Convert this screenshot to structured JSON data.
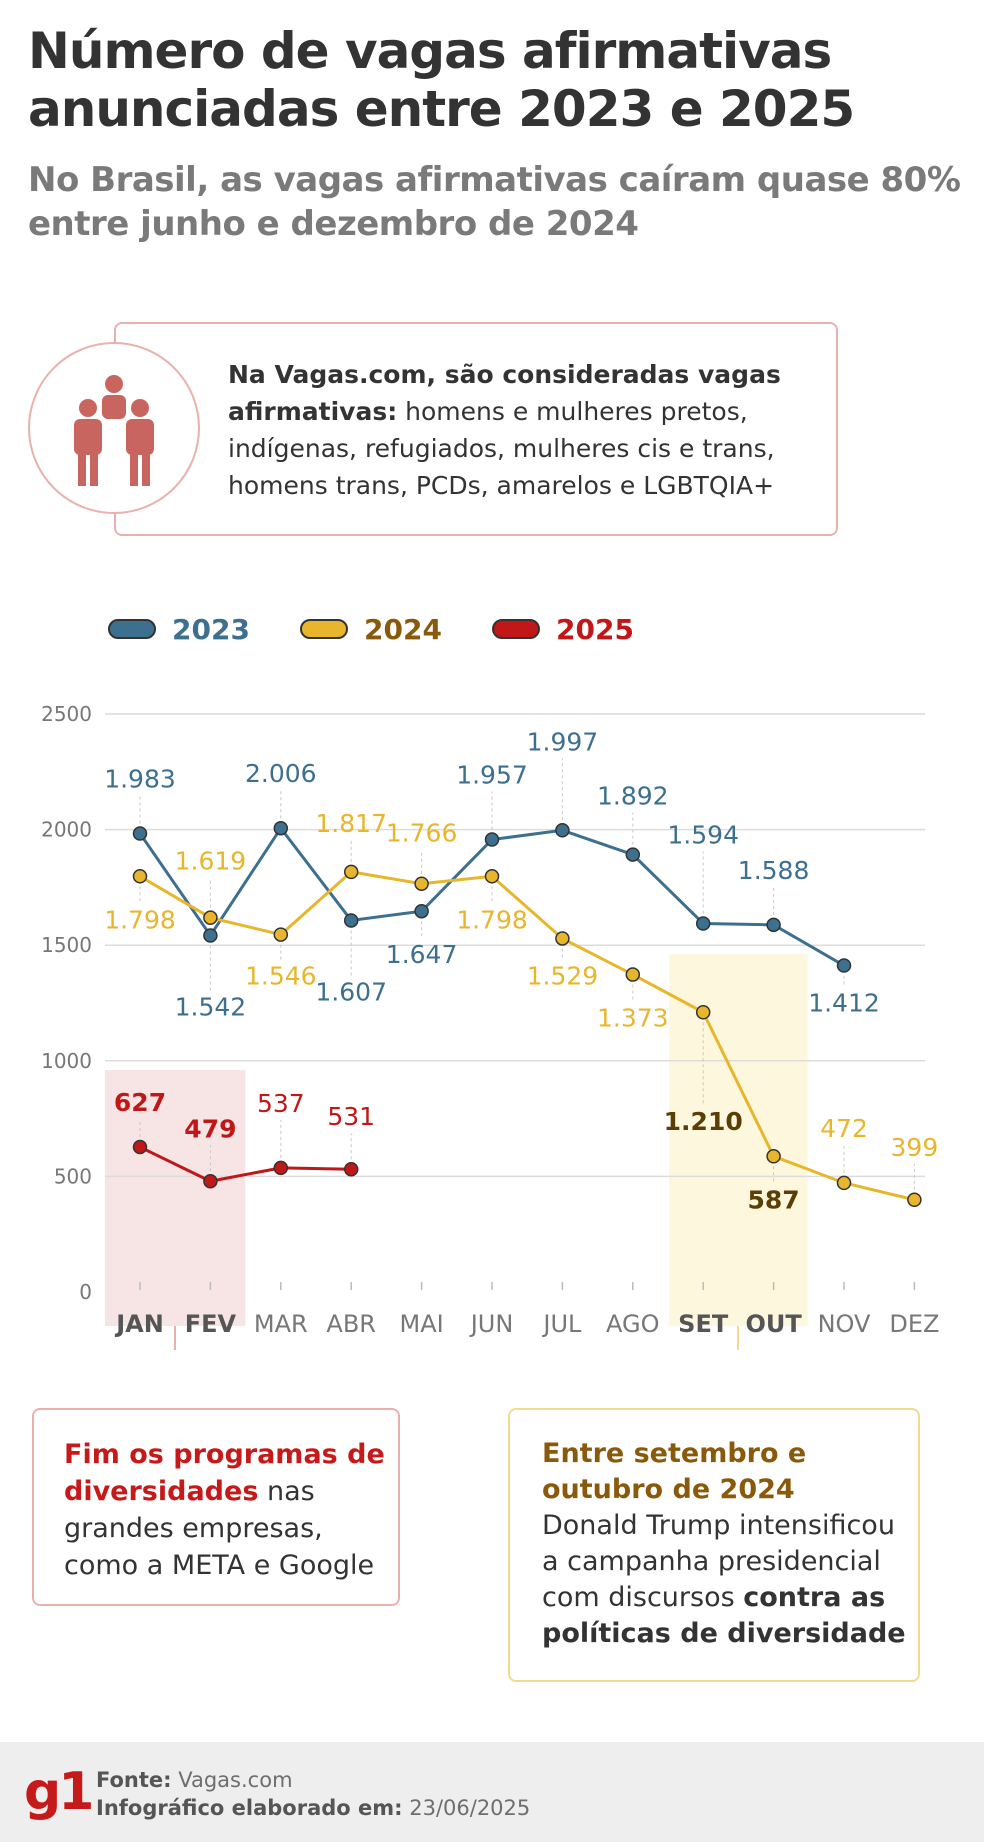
{
  "title": "Número de vagas afirmativas anunciadas entre 2023 e 2025",
  "subtitle": "No Brasil, as vagas afirmativas caíram quase 80% entre junho e dezembro de 2024",
  "info": {
    "bold": "Na Vagas.com, são consideradas vagas afirmativas:",
    "text": " homens e mulheres pretos, indígenas, refugiados, mulheres cis e trans, homens trans, PCDs, amarelos e LGBTQIA+",
    "icon": "people-group-icon"
  },
  "colors": {
    "s2023": "#3d6f8f",
    "s2024": "#e8b62c",
    "s2025": "#c01818",
    "highlight_left": "#f7e5e5",
    "highlight_right": "#fdf7dd"
  },
  "chart_data": {
    "type": "line",
    "categories": [
      "JAN",
      "FEV",
      "MAR",
      "ABR",
      "MAI",
      "JUN",
      "JUL",
      "AGO",
      "SET",
      "OUT",
      "NOV",
      "DEZ"
    ],
    "ylim": [
      0,
      2500
    ],
    "yticks": [
      "0",
      "500",
      "1000",
      "1500",
      "2000",
      "2500"
    ],
    "grid": true,
    "legend_position": "top-left",
    "highlighted_categories": [
      "JAN",
      "FEV",
      "SET",
      "OUT"
    ],
    "series": [
      {
        "name": "2023",
        "values": [
          1983,
          1542,
          2006,
          1607,
          1647,
          1957,
          1997,
          1892,
          1594,
          1588,
          1412,
          null
        ],
        "labels": [
          "1.983",
          "1.542",
          "2.006",
          "1.607",
          "1.647",
          "1.957",
          "1.997",
          "1.892",
          "1.594",
          "1.588",
          "1.412",
          ""
        ]
      },
      {
        "name": "2024",
        "values": [
          1798,
          1619,
          1546,
          1817,
          1766,
          1798,
          1529,
          1373,
          1210,
          587,
          472,
          399
        ],
        "labels": [
          "1.798",
          "1.619",
          "1.546",
          "1.817",
          "1.766",
          "1.798",
          "1.529",
          "1.373",
          "1.210",
          "587",
          "472",
          "399"
        ]
      },
      {
        "name": "2025",
        "values": [
          627,
          479,
          537,
          531,
          null,
          null,
          null,
          null,
          null,
          null,
          null,
          null
        ],
        "labels": [
          "627",
          "479",
          "537",
          "531",
          "",
          "",
          "",
          "",
          "",
          "",
          "",
          ""
        ]
      }
    ]
  },
  "notes": {
    "left_highlight": "Fim os programas de diversidades",
    "left_text": " nas grandes empresas, como a META e Google",
    "right_highlight": "Entre setembro e outubro de 2024",
    "right_text_1": "Donald Trump intensificou a campanha presidencial com discursos ",
    "right_bold": "contra as políticas de diversidade"
  },
  "footer": {
    "logo": "g1",
    "source_label": "Fonte:",
    "source_value": "Vagas.com",
    "date_label": "Infográfico elaborado em:",
    "date_value": "23/06/2025"
  }
}
